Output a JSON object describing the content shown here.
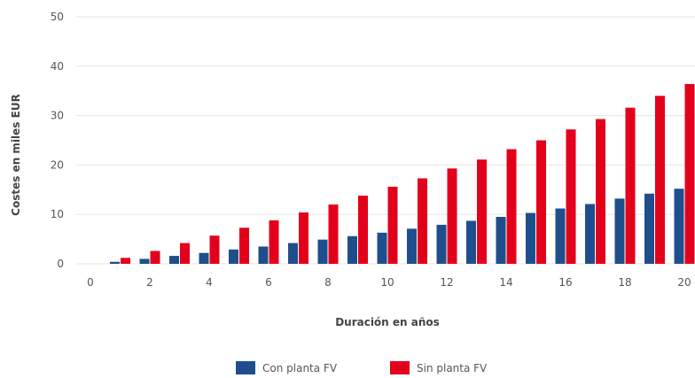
{
  "chart_data": {
    "type": "bar",
    "x": [
      0,
      1,
      2,
      3,
      4,
      5,
      6,
      7,
      8,
      9,
      10,
      11,
      12,
      13,
      14,
      15,
      16,
      17,
      18,
      19,
      20
    ],
    "x_tick_labels": [
      "0",
      "2",
      "4",
      "6",
      "8",
      "10",
      "12",
      "14",
      "16",
      "18",
      "20"
    ],
    "series": [
      {
        "name": "Con planta FV",
        "color": "#1f4e8c",
        "values": [
          0,
          0.4,
          1.0,
          1.6,
          2.2,
          2.9,
          3.5,
          4.2,
          4.9,
          5.6,
          6.3,
          7.1,
          7.9,
          8.7,
          9.5,
          10.3,
          11.2,
          12.1,
          13.2,
          14.2,
          15.2
        ]
      },
      {
        "name": "Sin planta FV",
        "color": "#e3001b",
        "values": [
          0,
          1.2,
          2.6,
          4.2,
          5.7,
          7.3,
          8.8,
          10.4,
          12.0,
          13.8,
          15.6,
          17.3,
          19.3,
          21.1,
          23.2,
          25.0,
          27.2,
          29.3,
          31.6,
          34.0,
          36.4
        ]
      }
    ],
    "xlabel": "Duración en años",
    "ylabel": "Costes en miles EUR",
    "ylim": [
      0,
      50
    ],
    "y_ticks": [
      "0",
      "10",
      "20",
      "30",
      "40",
      "50"
    ],
    "grid": true,
    "legend_position": "bottom-center"
  }
}
